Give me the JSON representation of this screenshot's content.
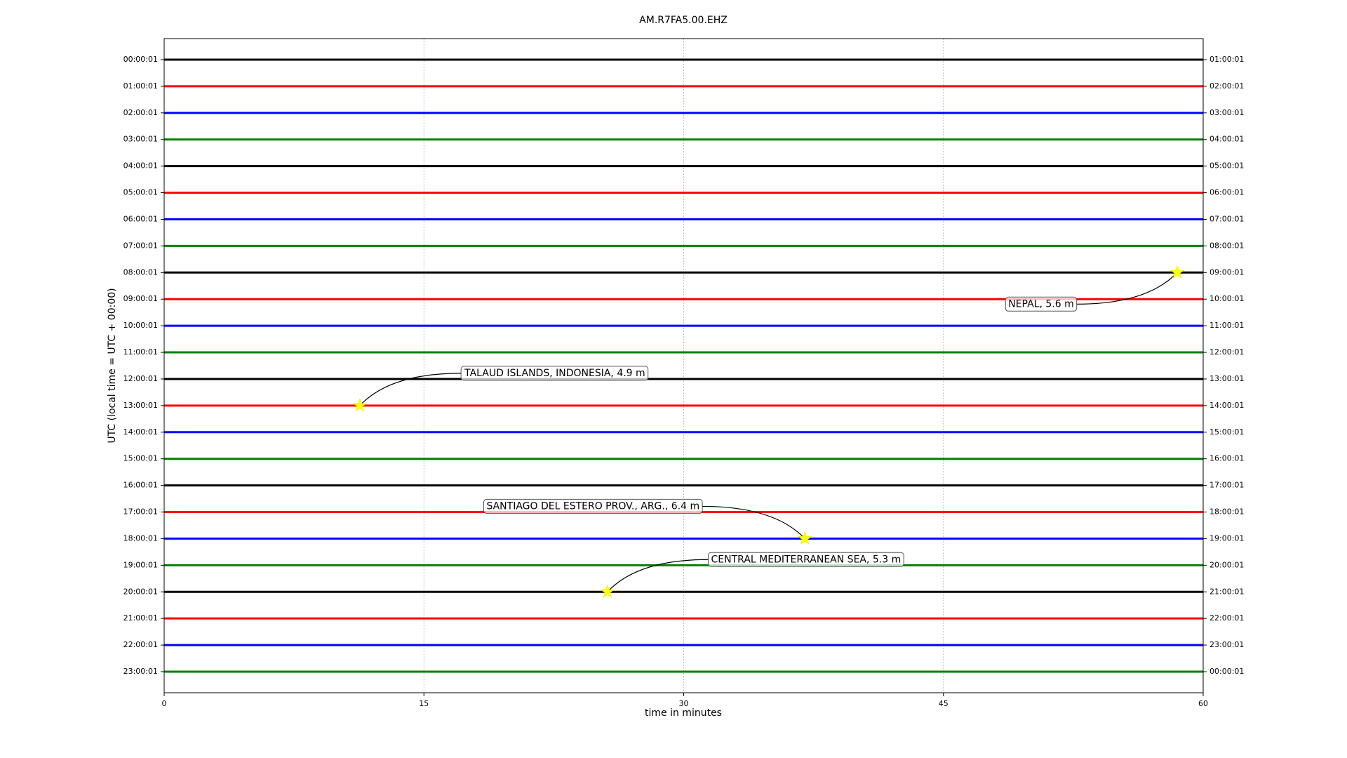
{
  "chart_data": {
    "type": "dayplot",
    "title": "AM.R7FA5.00.EHZ",
    "x_label": "time in minutes",
    "y_label": "UTC (local time = UTC + 00:00)",
    "xlim": [
      0,
      60
    ],
    "xticks": [
      0,
      15,
      30,
      45,
      60
    ],
    "grid": true,
    "colors": [
      "#000000",
      "#ff0000",
      "#0000ff",
      "#008000"
    ],
    "rows": [
      "00:00:01",
      "01:00:01",
      "02:00:01",
      "03:00:01",
      "04:00:01",
      "05:00:01",
      "06:00:01",
      "07:00:01",
      "08:00:01",
      "09:00:01",
      "10:00:01",
      "11:00:01",
      "12:00:01",
      "13:00:01",
      "14:00:01",
      "15:00:01",
      "16:00:01",
      "17:00:01",
      "18:00:01",
      "19:00:01",
      "20:00:01",
      "21:00:01",
      "22:00:01",
      "23:00:01"
    ],
    "right_labels": [
      "01:00:01",
      "02:00:01",
      "03:00:01",
      "04:00:01",
      "05:00:01",
      "06:00:01",
      "07:00:01",
      "08:00:01",
      "09:00:01",
      "10:00:01",
      "11:00:01",
      "12:00:01",
      "13:00:01",
      "14:00:01",
      "15:00:01",
      "16:00:01",
      "17:00:01",
      "18:00:01",
      "19:00:01",
      "20:00:01",
      "21:00:01",
      "22:00:01",
      "23:00:01",
      "00:00:01"
    ],
    "events": [
      {
        "label": "NEPAL, 5.6 m",
        "row": 8,
        "minute": 58.5
      },
      {
        "label": "TALAUD ISLANDS, INDONESIA, 4.9 m",
        "row": 13,
        "minute": 11.3
      },
      {
        "label": "SANTIAGO DEL ESTERO PROV., ARG., 6.4 m",
        "row": 18,
        "minute": 37.0
      },
      {
        "label": "CENTRAL MEDITERRANEAN SEA, 5.3 m",
        "row": 20,
        "minute": 25.6
      }
    ]
  }
}
